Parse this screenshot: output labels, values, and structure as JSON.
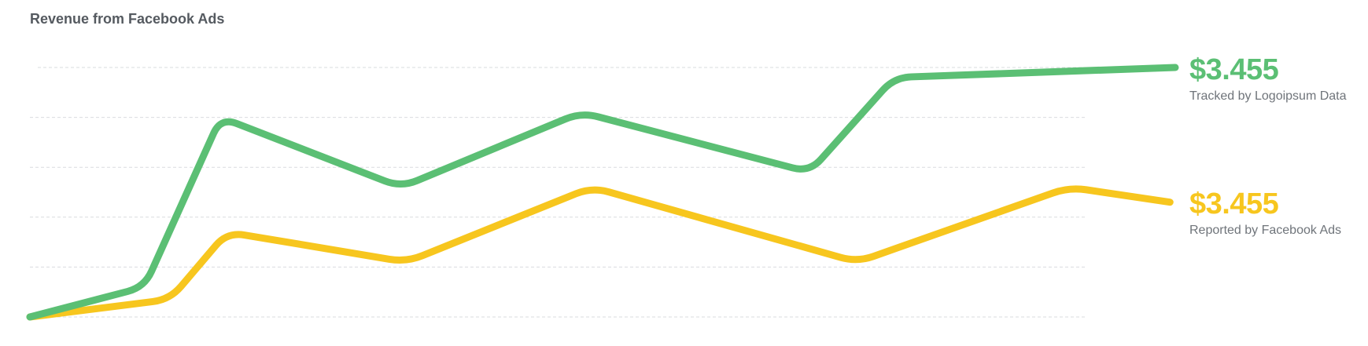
{
  "chart_data": {
    "type": "line",
    "title": "Revenue from Facebook Ads",
    "grid": true,
    "series": [
      {
        "key": "tracked",
        "name": "Tracked by Logoipsum Data",
        "value_label": "$3.455",
        "color": "#5bbf74",
        "points": [
          [
            0,
            0.0
          ],
          [
            0.108,
            0.6
          ],
          [
            0.18,
            4.0
          ],
          [
            0.35,
            2.6
          ],
          [
            0.52,
            4.1
          ],
          [
            0.735,
            2.9
          ],
          [
            0.815,
            4.8
          ],
          [
            1.08,
            5.0
          ]
        ]
      },
      {
        "key": "reported",
        "name": "Reported by Facebook Ads",
        "value_label": "$3.455",
        "color": "#f7c61e",
        "points": [
          [
            0,
            0.0
          ],
          [
            0.132,
            0.35
          ],
          [
            0.186,
            1.7
          ],
          [
            0.355,
            1.1
          ],
          [
            0.53,
            2.6
          ],
          [
            0.78,
            1.1
          ],
          [
            0.98,
            2.6
          ],
          [
            1.075,
            2.3
          ]
        ]
      }
    ],
    "xlim": [
      0,
      1.08
    ],
    "ylim": [
      0,
      5.0
    ]
  }
}
